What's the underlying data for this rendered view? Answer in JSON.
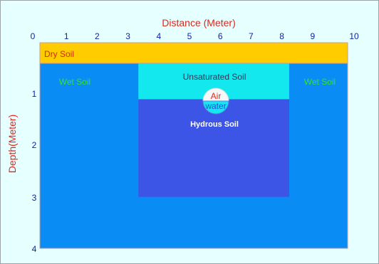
{
  "axes": {
    "x_title": "Distance (Meter)",
    "y_title": "Depth(Meter)",
    "x_ticks": [
      "0",
      "1",
      "2",
      "3",
      "4",
      "5",
      "6",
      "7",
      "8",
      "9",
      "10"
    ],
    "y_ticks": [
      "1",
      "2",
      "3",
      "4"
    ]
  },
  "regions": {
    "dry_soil": {
      "label": "Dry Soil",
      "x_range": [
        0,
        10
      ],
      "depth_range": [
        0,
        0.4
      ]
    },
    "wet_soil": {
      "label_left": "Wet Soil",
      "label_right": "Wet Soil",
      "x_range": [
        0,
        10
      ],
      "depth_range": [
        0.4,
        4
      ]
    },
    "unsaturated_soil": {
      "label": "Unsaturated Soil",
      "x_range": [
        3.2,
        8.1
      ],
      "depth_range": [
        0.4,
        1.1
      ]
    },
    "hydrous_soil": {
      "label": "Hydrous Soil",
      "x_range": [
        3.2,
        8.1
      ],
      "depth_range": [
        1.1,
        3.0
      ]
    }
  },
  "bubble": {
    "air_label": "Air",
    "water_label": "water"
  },
  "colors": {
    "background": "#e6ffff",
    "axis_text": "#0b1fa8",
    "axis_title": "#e0261b",
    "dry_soil": "#ffcc00",
    "wet_soil": "#0a8cf5",
    "unsaturated_soil": "#12e8ee",
    "hydrous_soil": "#3d55e6",
    "wet_label": "#36e22c",
    "dry_label": "#d12a12"
  }
}
